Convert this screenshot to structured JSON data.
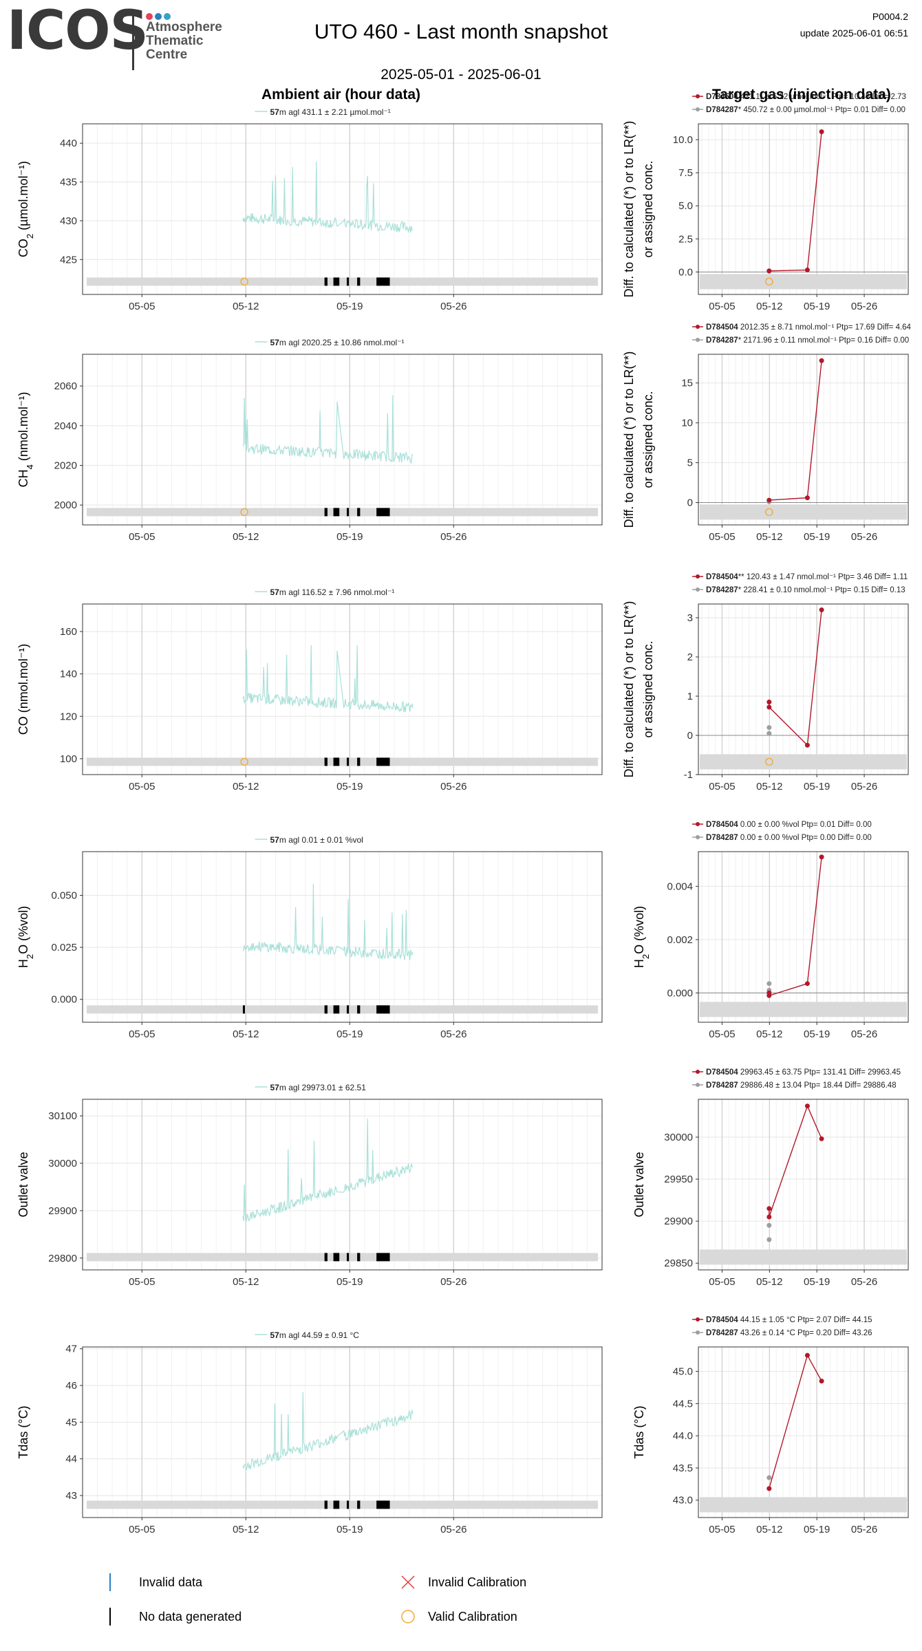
{
  "header": {
    "logo_text": "ICOS",
    "logo_sub": [
      "Atmosphere",
      "Thematic",
      "Centre"
    ],
    "logo_dot_colors": [
      "#e8425b",
      "#2b7fc0",
      "#36a2c8"
    ],
    "title": "UTO 460 - Last month snapshot",
    "date_range": "2025-05-01 - 2025-06-01",
    "code": "P0004.2",
    "update": "update  2025-06-01 06:51",
    "left_section": "Ambient air (hour data)",
    "right_section": "Target gas (injection data)"
  },
  "x_ticks": [
    "05-05",
    "05-12",
    "05-19",
    "05-26"
  ],
  "colors": {
    "ambient": "#a8e0d8",
    "target1": "#b2182b",
    "target2": "#9e9e9e",
    "valid_cal": "#f0a830",
    "invalid_cal": "#e53935",
    "flag_band": "#d9d9d9"
  },
  "legend": {
    "invalid_data": "Invalid data",
    "no_data": "No data generated",
    "invalid_cal": "Invalid Calibration",
    "valid_cal": "Valid Calibration"
  },
  "chart_data": [
    {
      "type": "line",
      "panel": "co2",
      "left": {
        "ylabel_main": "CO",
        "ylabel_sub": "2",
        "ylabel_rest": " (µmol.mol⁻¹)",
        "yticks": [
          425,
          430,
          435,
          440
        ],
        "ylim": [
          420.5,
          442.5
        ],
        "stats_bold": "57",
        "stats": "m agl 431.1 ± 2.21 µmol.mol⁻¹",
        "valid_cal": [
          [
            9.9,
            421.8
          ]
        ]
      },
      "right": {
        "ylabel": "Diff. to calculated (*) or to LR(**) or assigned conc.",
        "yticks": [
          0.0,
          2.5,
          5.0,
          7.5,
          10.0
        ],
        "ylim": [
          -1.7,
          11.2
        ],
        "tick_decimals": 1,
        "legend": [
          {
            "bold": "D784504",
            "text": " 421.11 ± 5.22 µmol.mol⁻¹ Ptp= 10.48 Diff= 2.73"
          },
          {
            "bold": "D784287",
            "text": "* 450.72 ± 0.00 µmol.mol⁻¹ Ptp= 0.01 Diff= 0.00"
          }
        ],
        "series1": [
          [
            9.95,
            0.08
          ],
          [
            15.6,
            0.15
          ],
          [
            17.7,
            10.6
          ]
        ],
        "series2": [
          [
            9.95,
            0.05
          ]
        ],
        "valid_cal": [
          [
            9.95,
            -1.0
          ]
        ]
      }
    },
    {
      "type": "line",
      "panel": "ch4",
      "left": {
        "ylabel_main": "CH",
        "ylabel_sub": "4",
        "ylabel_rest": " (nmol.mol⁻¹)",
        "yticks": [
          2000,
          2020,
          2040,
          2060
        ],
        "ylim": [
          1990,
          2076
        ],
        "stats_bold": "57",
        "stats": "m agl 2020.25 ± 10.86 nmol.mol⁻¹",
        "valid_cal": [
          [
            9.9,
            1995
          ]
        ]
      },
      "right": {
        "ylabel": "Diff. to calculated (*) or to LR(**) or assigned conc.",
        "yticks": [
          0,
          5,
          10,
          15
        ],
        "ylim": [
          -2.8,
          18.6
        ],
        "tick_decimals": 0,
        "legend": [
          {
            "bold": "D784504",
            "text": " 2012.35 ± 8.71 nmol.mol⁻¹ Ptp= 17.69 Diff= 4.64"
          },
          {
            "bold": "D784287",
            "text": "* 2171.96 ± 0.11 nmol.mol⁻¹ Ptp= 0.16 Diff= 0.00"
          }
        ],
        "series1": [
          [
            9.95,
            0.3
          ],
          [
            15.6,
            0.6
          ],
          [
            17.7,
            17.8
          ]
        ],
        "series2": [
          [
            9.95,
            0.1
          ]
        ],
        "valid_cal": [
          [
            9.95,
            -1.8
          ]
        ]
      }
    },
    {
      "type": "line",
      "panel": "co",
      "left": {
        "ylabel_main": "CO",
        "ylabel_sub": "",
        "ylabel_rest": " (nmol.mol⁻¹)",
        "yticks": [
          100,
          120,
          140,
          160
        ],
        "ylim": [
          92.5,
          173
        ],
        "stats_bold": "57",
        "stats": "m agl 116.52 ± 7.96 nmol.mol⁻¹",
        "valid_cal": [
          [
            9.9,
            98
          ]
        ]
      },
      "right": {
        "ylabel": "Diff. to calculated (*) or to LR(**) or assigned conc.",
        "yticks": [
          -1,
          0,
          1,
          2,
          3
        ],
        "ylim": [
          -1.0,
          3.35
        ],
        "tick_decimals": 0,
        "legend": [
          {
            "bold": "D784504",
            "text": "** 120.43 ± 1.47 nmol.mol⁻¹ Ptp= 3.46 Diff= 1.11"
          },
          {
            "bold": "D784287",
            "text": "* 228.41 ± 0.10 nmol.mol⁻¹ Ptp= 0.15 Diff= 0.13"
          }
        ],
        "series1": [
          [
            9.95,
            0.85
          ],
          [
            9.95,
            0.72
          ],
          [
            15.6,
            -0.25
          ],
          [
            17.7,
            3.2
          ]
        ],
        "series2": [
          [
            9.95,
            0.2
          ],
          [
            9.95,
            0.05
          ]
        ],
        "valid_cal": [
          [
            9.95,
            -0.6
          ]
        ]
      }
    },
    {
      "type": "line",
      "panel": "h2o",
      "left": {
        "ylabel_main": "H",
        "ylabel_sub": "2",
        "ylabel_rest": "O (%vol)",
        "yticks": [
          0.0,
          0.025,
          0.05
        ],
        "ylim": [
          -0.011,
          0.071
        ],
        "tick_decimals": 3,
        "stats_bold": "57",
        "stats": "m agl 0.01 ± 0.01 %vol",
        "valid_cal": []
      },
      "right": {
        "ylabel": "H2O (%vol)",
        "ylabel_main": "H",
        "ylabel_sub": "2",
        "ylabel_rest": "O (%vol)",
        "yticks": [
          0.0,
          0.002,
          0.004
        ],
        "ylim": [
          -0.0011,
          0.0053
        ],
        "tick_decimals": 3,
        "legend": [
          {
            "bold": "D784504",
            "text": " 0.00 ± 0.00 %vol Ptp= 0.01 Diff= 0.00"
          },
          {
            "bold": "D784287",
            "text": " 0.00 ± 0.00 %vol Ptp= 0.00 Diff= 0.00"
          }
        ],
        "series1": [
          [
            9.95,
            0.0
          ],
          [
            9.95,
            -0.0001
          ],
          [
            15.6,
            0.00035
          ],
          [
            17.7,
            0.0051
          ]
        ],
        "series2": [
          [
            9.95,
            0.00035
          ],
          [
            9.95,
            0.0001
          ]
        ],
        "valid_cal": []
      }
    },
    {
      "type": "line",
      "panel": "outlet",
      "left": {
        "ylabel_main": "Outlet valve",
        "ylabel_sub": "",
        "ylabel_rest": "",
        "yticks": [
          29800,
          29900,
          30000,
          30100
        ],
        "ylim": [
          29775,
          30135
        ],
        "stats_bold": "57",
        "stats": "m agl 29973.01 ± 62.51",
        "valid_cal": []
      },
      "right": {
        "ylabel": "Outlet valve",
        "yticks": [
          29850,
          29900,
          29950,
          30000
        ],
        "ylim": [
          29842,
          30045
        ],
        "tick_decimals": 0,
        "legend": [
          {
            "bold": "D784504",
            "text": " 29963.45 ± 63.75  Ptp= 131.41 Diff= 29963.45"
          },
          {
            "bold": "D784287",
            "text": " 29886.48 ± 13.04  Ptp= 18.44 Diff= 29886.48"
          }
        ],
        "series1": [
          [
            9.95,
            29915
          ],
          [
            9.95,
            29905
          ],
          [
            15.6,
            30037
          ],
          [
            17.7,
            29998
          ]
        ],
        "series2": [
          [
            9.95,
            29895
          ],
          [
            9.95,
            29878
          ]
        ],
        "valid_cal": []
      }
    },
    {
      "type": "line",
      "panel": "tdas",
      "left": {
        "ylabel_main": "Tdas (°C)",
        "ylabel_sub": "",
        "ylabel_rest": "",
        "yticks": [
          43,
          44,
          45,
          46,
          47
        ],
        "ylim": [
          42.4,
          47.05
        ],
        "stats_bold": "57",
        "stats": "m agl 44.59 ± 0.91 °C",
        "valid_cal": []
      },
      "right": {
        "ylabel": "Tdas (°C)",
        "yticks": [
          43.0,
          43.5,
          44.0,
          44.5,
          45.0
        ],
        "ylim": [
          42.73,
          45.38
        ],
        "tick_decimals": 1,
        "legend": [
          {
            "bold": "D784504",
            "text": " 44.15 ± 1.05 °C Ptp= 2.07 Diff= 44.15"
          },
          {
            "bold": "D784287",
            "text": " 43.26 ± 0.14 °C Ptp= 0.20 Diff= 43.26"
          }
        ],
        "series1": [
          [
            9.95,
            43.18
          ],
          [
            15.6,
            45.25
          ],
          [
            17.7,
            44.85
          ]
        ],
        "series2": [
          [
            9.95,
            43.35
          ],
          [
            9.95,
            43.18
          ]
        ],
        "valid_cal": []
      }
    }
  ]
}
